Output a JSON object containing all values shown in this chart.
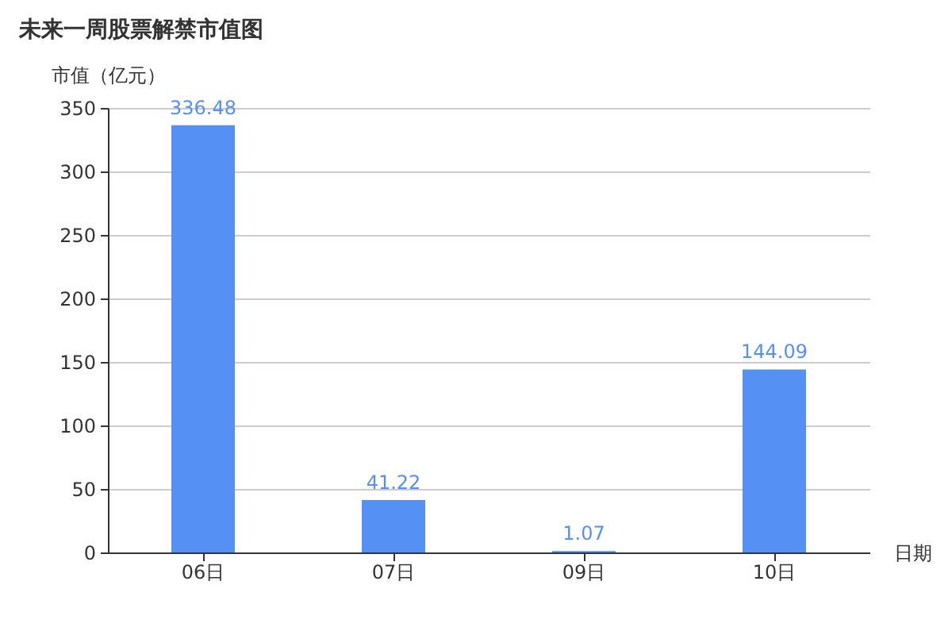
{
  "chart_data": {
    "type": "bar",
    "title": "未来一周股票解禁市值图",
    "xlabel": "日期",
    "ylabel": "市值（亿元）",
    "categories": [
      "06日",
      "07日",
      "09日",
      "10日"
    ],
    "values": [
      336.48,
      41.22,
      1.07,
      144.09
    ],
    "color": "#5591f5",
    "ylim": [
      0,
      350
    ],
    "yticks": [
      0,
      50,
      100,
      150,
      200,
      250,
      300,
      350
    ],
    "grid": "y",
    "data_labels": true
  }
}
